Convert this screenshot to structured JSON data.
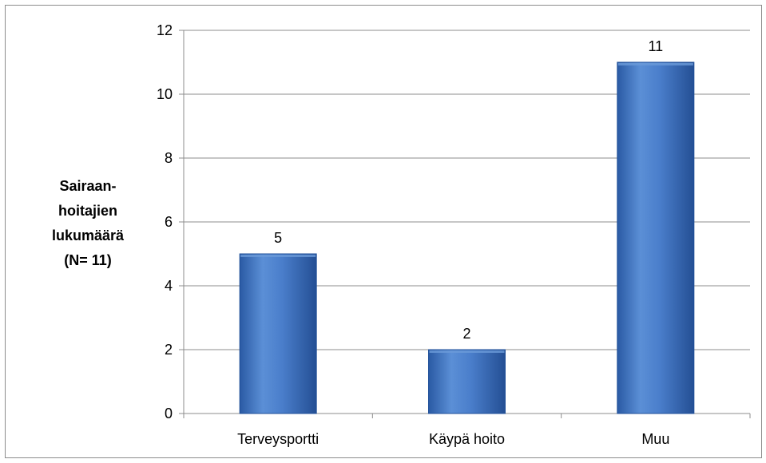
{
  "chart_data": {
    "type": "bar",
    "categories": [
      "Terveysportti",
      "Käypä hoito",
      "Muu"
    ],
    "values": [
      5,
      2,
      11
    ],
    "data_labels": [
      "5",
      "2",
      "11"
    ],
    "title": "",
    "xlabel": "",
    "ylabel_lines": [
      "Sairaan-",
      "hoitajien",
      "lukumäärä",
      "(N= 11)"
    ],
    "ylim": [
      0,
      12
    ],
    "yticks": [
      0,
      2,
      4,
      6,
      8,
      10,
      12
    ],
    "grid": true,
    "legend": "none",
    "colors": {
      "bar": "#3f75c0",
      "bar_light": "#6a9ad8",
      "bar_dark": "#1f4f98",
      "grid": "#8c8c8c"
    }
  }
}
